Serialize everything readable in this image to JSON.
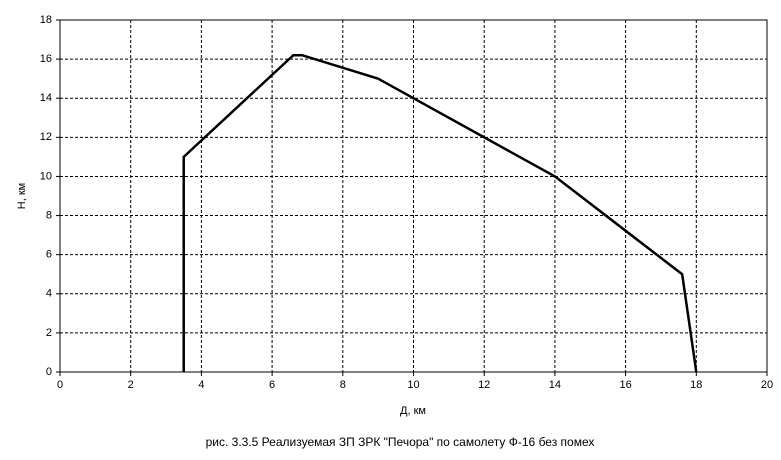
{
  "chart_data": {
    "type": "line",
    "caption": "рис. 3.3.5 Реализуемая ЗП ЗРК \"Печора\" по самолету Ф-16 без помех",
    "x_label": "Д, км",
    "y_label": "Н, км",
    "x": [
      3.5,
      3.5,
      6.6,
      6.85,
      9,
      14,
      17.6,
      18
    ],
    "series": [
      {
        "color": "#000000",
        "values": [
          0,
          11,
          16.2,
          16.2,
          15,
          10,
          5,
          0
        ]
      }
    ],
    "xlim": [
      0,
      20
    ],
    "xticks": [
      0,
      2,
      4,
      6,
      8,
      10,
      12,
      14,
      16,
      18,
      20
    ],
    "ylim": [
      0,
      18
    ],
    "yticks": [
      0,
      2,
      4,
      6,
      8,
      10,
      12,
      14,
      16,
      18
    ],
    "grid": true
  }
}
